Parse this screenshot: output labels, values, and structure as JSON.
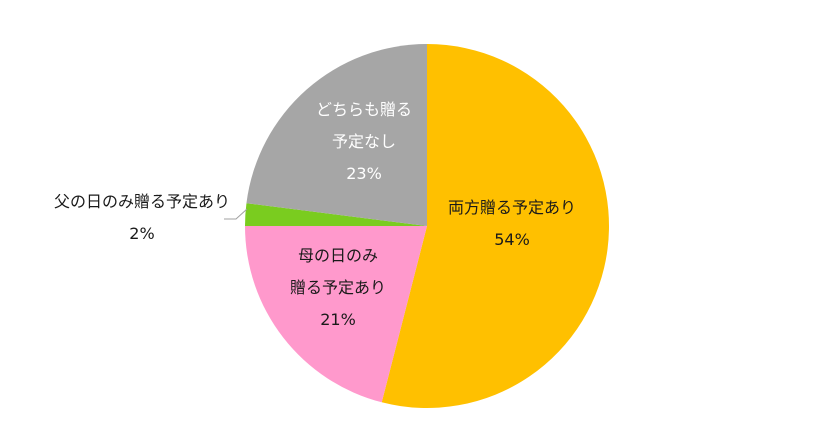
{
  "chart_data": {
    "type": "pie",
    "title": "",
    "start_angle_deg": 0,
    "direction": "clockwise",
    "categories": [
      "両方贈る予定あり",
      "母の日のみ贈る予定あり",
      "父の日のみ贈る予定あり",
      "どちらも贈る予定なし"
    ],
    "values": [
      54,
      21,
      2,
      23
    ],
    "unit": "%",
    "colors": [
      "#FFC000",
      "#FF99CC",
      "#7ACC1F",
      "#A6A6A6"
    ],
    "legend": "none",
    "data_labels": [
      {
        "lines": [
          "両方贈る予定あり",
          "54%"
        ]
      },
      {
        "lines": [
          "母の日のみ",
          "贈る予定あり",
          "21%"
        ]
      },
      {
        "lines": [
          "父の日のみ贈る予定あり",
          "2%"
        ]
      },
      {
        "lines": [
          "どちらも贈る",
          "予定なし",
          "23%"
        ]
      }
    ]
  }
}
